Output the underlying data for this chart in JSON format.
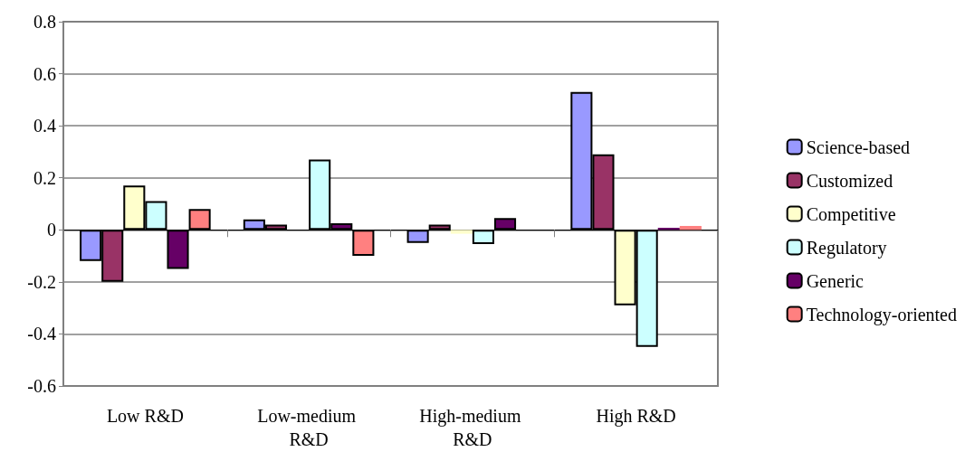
{
  "chart_data": {
    "type": "bar",
    "categories": [
      "Low R&D",
      "Low-medium R&D",
      "High-medium R&D",
      "High R&D"
    ],
    "series": [
      {
        "name": "Science-based",
        "color": "#9999ff",
        "values": [
          -0.12,
          0.04,
          -0.05,
          0.53
        ]
      },
      {
        "name": "Customized",
        "color": "#993366",
        "values": [
          -0.2,
          0.02,
          0.02,
          0.29
        ]
      },
      {
        "name": "Competitive",
        "color": "#ffffcc",
        "values": [
          0.17,
          null,
          -0.015,
          -0.29
        ]
      },
      {
        "name": "Regulatory",
        "color": "#ccffff",
        "values": [
          0.11,
          0.27,
          -0.055,
          -0.45
        ]
      },
      {
        "name": "Generic",
        "color": "#660066",
        "values": [
          -0.15,
          0.025,
          0.045,
          0.008
        ]
      },
      {
        "name": "Technology-oriented",
        "color": "#ff8080",
        "values": [
          0.08,
          -0.1,
          null,
          0.015
        ]
      }
    ],
    "ylim": [
      -0.6,
      0.8
    ],
    "yticks": [
      -0.6,
      -0.4,
      -0.2,
      0,
      0.2,
      0.4,
      0.6,
      0.8
    ],
    "grid": "y",
    "legend": "right"
  }
}
